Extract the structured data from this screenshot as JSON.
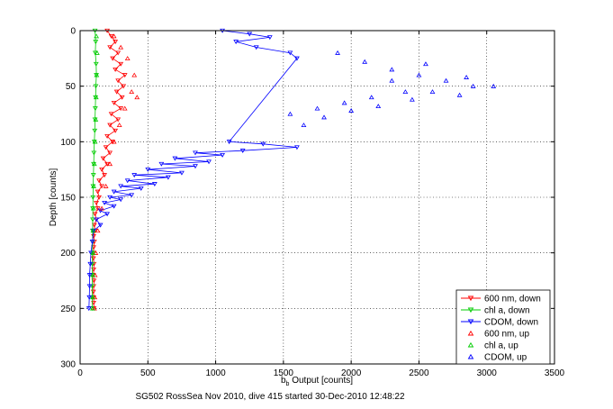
{
  "chart_data": {
    "type": "scatter",
    "title": "",
    "xlabel_main": "b",
    "xlabel_sub": "b",
    "xlabel_rest": " Output [counts]",
    "ylabel": "Depth [counts]",
    "xlim": [
      0,
      3500
    ],
    "ylim": [
      300,
      0
    ],
    "y_reversed": true,
    "grid": true,
    "grid_style": "dotted",
    "legend_position": "bottom-right",
    "xticks": [
      0,
      500,
      1000,
      1500,
      2000,
      2500,
      3000,
      3500
    ],
    "yticks": [
      0,
      50,
      100,
      150,
      200,
      250,
      300
    ],
    "caption": "SG502 RossSea Nov 2010, dive 415 started 30-Dec-2010 12:48:22",
    "series": [
      {
        "name": "600 nm, down",
        "color": "#ff0000",
        "marker": "triangle-down",
        "line": true,
        "points": [
          [
            200,
            0
          ],
          [
            230,
            5
          ],
          [
            260,
            10
          ],
          [
            220,
            15
          ],
          [
            280,
            20
          ],
          [
            240,
            25
          ],
          [
            300,
            30
          ],
          [
            260,
            35
          ],
          [
            330,
            40
          ],
          [
            280,
            45
          ],
          [
            320,
            50
          ],
          [
            270,
            55
          ],
          [
            310,
            60
          ],
          [
            250,
            65
          ],
          [
            300,
            70
          ],
          [
            230,
            75
          ],
          [
            280,
            80
          ],
          [
            220,
            85
          ],
          [
            260,
            90
          ],
          [
            200,
            95
          ],
          [
            240,
            100
          ],
          [
            190,
            105
          ],
          [
            220,
            110
          ],
          [
            170,
            115
          ],
          [
            200,
            120
          ],
          [
            160,
            125
          ],
          [
            180,
            130
          ],
          [
            140,
            135
          ],
          [
            160,
            140
          ],
          [
            130,
            145
          ],
          [
            140,
            150
          ],
          [
            120,
            155
          ],
          [
            130,
            160
          ],
          [
            110,
            165
          ],
          [
            120,
            170
          ],
          [
            105,
            175
          ],
          [
            110,
            180
          ],
          [
            100,
            185
          ],
          [
            105,
            190
          ],
          [
            100,
            195
          ],
          [
            100,
            200
          ],
          [
            98,
            205
          ],
          [
            102,
            210
          ],
          [
            100,
            215
          ],
          [
            98,
            220
          ],
          [
            102,
            225
          ],
          [
            100,
            230
          ],
          [
            98,
            235
          ],
          [
            100,
            240
          ],
          [
            100,
            245
          ],
          [
            102,
            250
          ]
        ]
      },
      {
        "name": "chl a, down",
        "color": "#00cc00",
        "marker": "triangle-down",
        "line": true,
        "points": [
          [
            110,
            0
          ],
          [
            115,
            10
          ],
          [
            112,
            20
          ],
          [
            118,
            30
          ],
          [
            120,
            40
          ],
          [
            116,
            50
          ],
          [
            114,
            60
          ],
          [
            112,
            70
          ],
          [
            110,
            80
          ],
          [
            108,
            90
          ],
          [
            105,
            100
          ],
          [
            102,
            110
          ],
          [
            100,
            120
          ],
          [
            98,
            130
          ],
          [
            96,
            140
          ],
          [
            95,
            150
          ],
          [
            94,
            160
          ],
          [
            93,
            170
          ],
          [
            92,
            180
          ],
          [
            92,
            190
          ],
          [
            91,
            200
          ],
          [
            90,
            210
          ],
          [
            90,
            220
          ],
          [
            89,
            230
          ],
          [
            89,
            240
          ],
          [
            88,
            250
          ]
        ]
      },
      {
        "name": "CDOM, down",
        "color": "#0000ff",
        "marker": "triangle-down",
        "line": true,
        "points": [
          [
            1050,
            0
          ],
          [
            1250,
            3
          ],
          [
            1400,
            6
          ],
          [
            1150,
            10
          ],
          [
            1300,
            15
          ],
          [
            1550,
            20
          ],
          [
            1600,
            25
          ],
          [
            1100,
            100
          ],
          [
            1350,
            102
          ],
          [
            1600,
            105
          ],
          [
            1200,
            108
          ],
          [
            850,
            110
          ],
          [
            1050,
            112
          ],
          [
            700,
            115
          ],
          [
            950,
            118
          ],
          [
            600,
            120
          ],
          [
            850,
            122
          ],
          [
            500,
            125
          ],
          [
            750,
            128
          ],
          [
            400,
            130
          ],
          [
            650,
            132
          ],
          [
            350,
            135
          ],
          [
            550,
            138
          ],
          [
            300,
            140
          ],
          [
            450,
            142
          ],
          [
            250,
            145
          ],
          [
            380,
            148
          ],
          [
            220,
            150
          ],
          [
            300,
            152
          ],
          [
            180,
            155
          ],
          [
            250,
            158
          ],
          [
            150,
            162
          ],
          [
            200,
            165
          ],
          [
            120,
            170
          ],
          [
            150,
            175
          ],
          [
            100,
            180
          ],
          [
            90,
            190
          ],
          [
            80,
            200
          ],
          [
            75,
            210
          ],
          [
            70,
            220
          ],
          [
            70,
            230
          ],
          [
            68,
            240
          ],
          [
            65,
            250
          ]
        ]
      },
      {
        "name": "600 nm, up",
        "color": "#ff0000",
        "marker": "triangle-up",
        "line": false,
        "points": [
          [
            250,
            5
          ],
          [
            300,
            15
          ],
          [
            350,
            25
          ],
          [
            400,
            40
          ],
          [
            380,
            55
          ],
          [
            420,
            60
          ],
          [
            330,
            70
          ],
          [
            290,
            85
          ],
          [
            250,
            100
          ],
          [
            220,
            120
          ],
          [
            190,
            140
          ],
          [
            160,
            160
          ],
          [
            130,
            180
          ],
          [
            115,
            200
          ],
          [
            110,
            220
          ],
          [
            108,
            240
          ],
          [
            105,
            250
          ]
        ]
      },
      {
        "name": "chl a, up",
        "color": "#00cc00",
        "marker": "triangle-up",
        "line": false,
        "points": [
          [
            120,
            5
          ],
          [
            125,
            20
          ],
          [
            122,
            40
          ],
          [
            118,
            60
          ],
          [
            115,
            80
          ],
          [
            110,
            100
          ],
          [
            105,
            120
          ],
          [
            100,
            140
          ],
          [
            98,
            160
          ],
          [
            96,
            180
          ],
          [
            95,
            200
          ],
          [
            94,
            220
          ],
          [
            93,
            240
          ],
          [
            92,
            250
          ]
        ]
      },
      {
        "name": "CDOM, up",
        "color": "#0000ff",
        "marker": "triangle-up",
        "line": false,
        "points": [
          [
            1900,
            20
          ],
          [
            2100,
            28
          ],
          [
            2300,
            35
          ],
          [
            2500,
            40
          ],
          [
            2700,
            45
          ],
          [
            2900,
            50
          ],
          [
            2600,
            55
          ],
          [
            2800,
            58
          ],
          [
            2450,
            62
          ],
          [
            2200,
            68
          ],
          [
            2000,
            72
          ],
          [
            1800,
            78
          ],
          [
            1650,
            85
          ],
          [
            2300,
            45
          ],
          [
            2550,
            30
          ],
          [
            2850,
            42
          ],
          [
            3050,
            50
          ],
          [
            2400,
            55
          ],
          [
            2150,
            60
          ],
          [
            1950,
            65
          ],
          [
            1750,
            70
          ],
          [
            1550,
            75
          ]
        ]
      }
    ]
  }
}
